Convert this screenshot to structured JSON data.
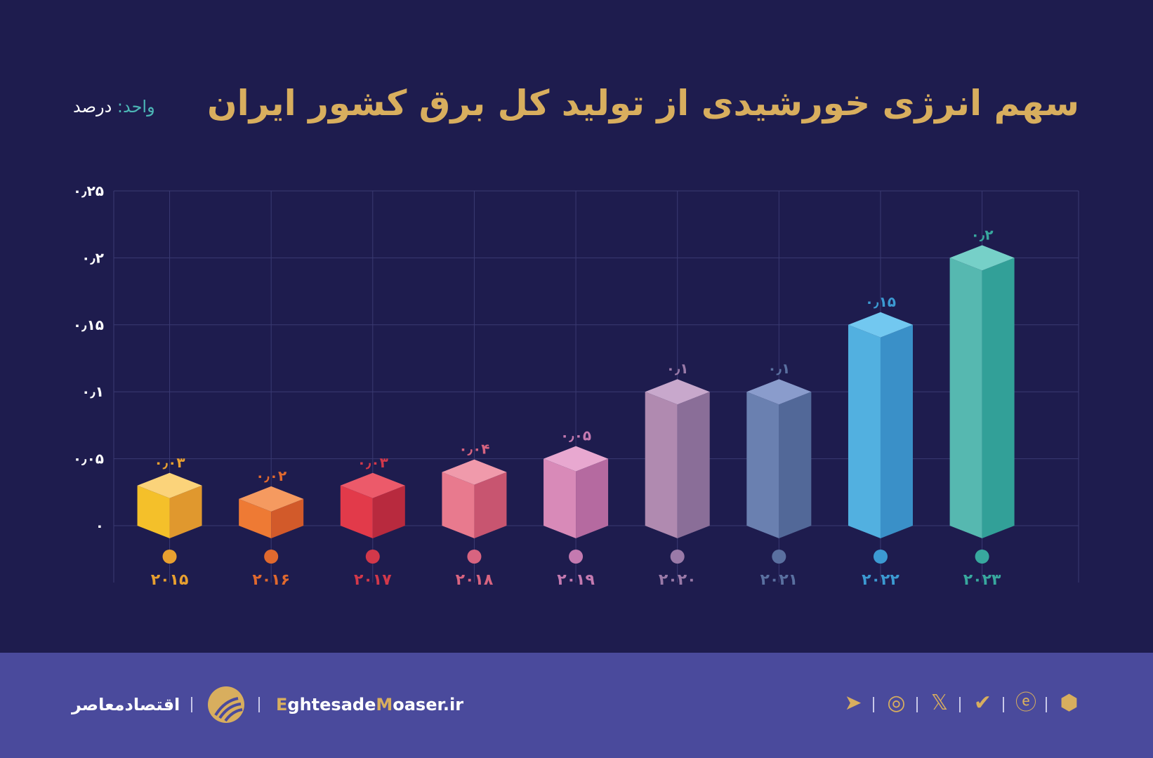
{
  "title": "سهم انرژی خورشیدی از تولید کل برق کشور ایران",
  "unit": {
    "label": "واحد:",
    "value": "درصد"
  },
  "chart_data": {
    "type": "bar",
    "title": "سهم انرژی خورشیدی از تولید کل برق کشور ایران",
    "ylabel": "واحد: درصد",
    "ylim": [
      0,
      0.25
    ],
    "grid": true,
    "yticks": [
      0,
      0.05,
      0.1,
      0.15,
      0.2,
      0.25
    ],
    "ytick_labels": [
      "۰",
      "۰٫۰۵",
      "۰٫۱",
      "۰٫۱۵",
      "۰٫۲",
      "۰٫۲۵"
    ],
    "categories": [
      "۲۰۱۵",
      "۲۰۱۶",
      "۲۰۱۷",
      "۲۰۱۸",
      "۲۰۱۹",
      "۲۰۲۰",
      "۲۰۲۱",
      "۲۰۲۲",
      "۲۰۲۳"
    ],
    "values": [
      0.03,
      0.02,
      0.03,
      0.04,
      0.05,
      0.1,
      0.1,
      0.15,
      0.2
    ],
    "data_labels": [
      "۰٫۰۳",
      "۰٫۰۲",
      "۰٫۰۳",
      "۰٫۰۴",
      "۰٫۰۵",
      "۰٫۱",
      "۰٫۱",
      "۰٫۱۵",
      "۰٫۲"
    ],
    "colors": [
      {
        "left": "#f4c02a",
        "right": "#e0982e",
        "top": "#fbd37a",
        "label": "#e8a030"
      },
      {
        "left": "#ee7a34",
        "right": "#d25a2a",
        "top": "#f59a60",
        "label": "#e0692e"
      },
      {
        "left": "#e23a4a",
        "right": "#b82a3e",
        "top": "#ec5a6a",
        "label": "#d2384a"
      },
      {
        "left": "#e87a8e",
        "right": "#c85570",
        "top": "#f09aab",
        "label": "#d86480"
      },
      {
        "left": "#d88ab8",
        "right": "#b56aa0",
        "top": "#e8a8d0",
        "label": "#c47ab0"
      },
      {
        "left": "#b08ab0",
        "right": "#8a6e98",
        "top": "#c8a8cc",
        "label": "#9a7aa8"
      },
      {
        "left": "#6a80b0",
        "right": "#526898",
        "top": "#8a9ccc",
        "label": "#5a70a0"
      },
      {
        "left": "#52b0e0",
        "right": "#3a90c8",
        "top": "#72c8f0",
        "label": "#3c9ad2"
      },
      {
        "left": "#56b8b0",
        "right": "#32a098",
        "top": "#76d0c8",
        "label": "#38a89e"
      }
    ]
  },
  "footer": {
    "brand_fa": "اقتصادمعاصر",
    "site": {
      "e": "E",
      "part1": "ghtesade",
      "m": "M",
      "part2": "oaser.ir"
    },
    "social": [
      "telegram-icon",
      "instagram-icon",
      "x-icon",
      "bale-icon",
      "eitaa-icon",
      "rubika-icon"
    ]
  }
}
